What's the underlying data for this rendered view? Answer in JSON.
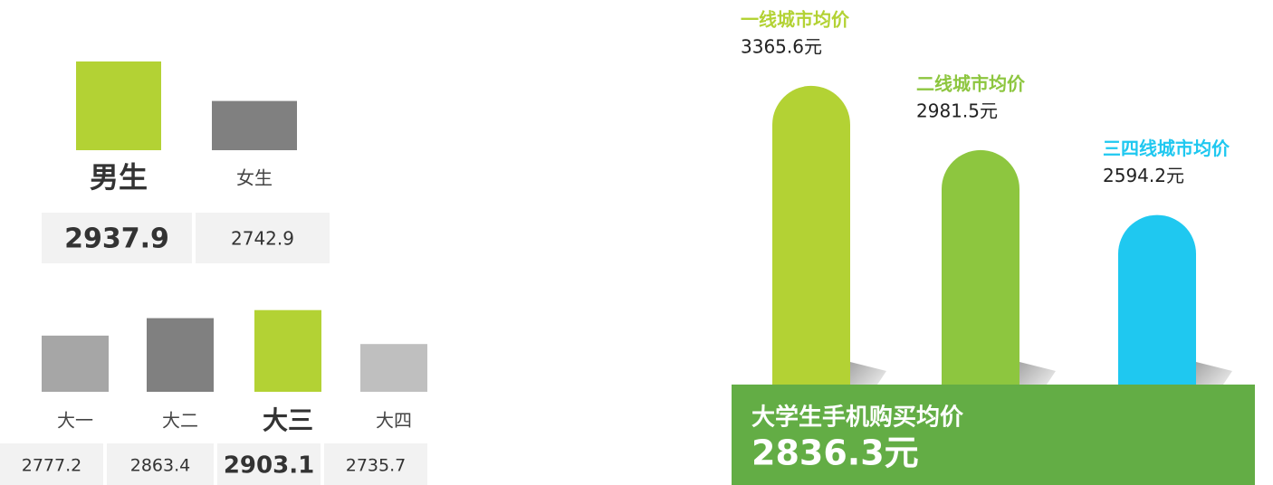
{
  "chart_data": [
    {
      "type": "bar",
      "categories": [
        "男生",
        "女生"
      ],
      "values": [
        2937.9,
        2742.9
      ],
      "colors": [
        "#b3d234",
        "#808080"
      ],
      "highlight": 0,
      "ylim": [
        2500,
        3000
      ]
    },
    {
      "type": "bar",
      "categories": [
        "大一",
        "大二",
        "大三",
        "大四"
      ],
      "values": [
        2777.2,
        2863.4,
        2903.1,
        2735.7
      ],
      "colors": [
        "#a6a6a6",
        "#808080",
        "#b3d234",
        "#bfbfbf"
      ],
      "highlight": 2,
      "ylim": [
        2500,
        3000
      ]
    },
    {
      "type": "pillar",
      "categories": [
        "一线城市均价",
        "二线城市均价",
        "三四线城市均价"
      ],
      "values": [
        3365.6,
        2981.5,
        2594.2
      ],
      "value_labels": [
        "3365.6元",
        "2981.5元",
        "2594.2元"
      ],
      "colors": [
        "#b3d234",
        "#8dc63f",
        "#1fc8f0"
      ],
      "ylim": [
        1500,
        3500
      ],
      "total": {
        "label": "大学生手机购买均价",
        "value": 2836.3,
        "value_label": "2836.3元"
      }
    }
  ]
}
